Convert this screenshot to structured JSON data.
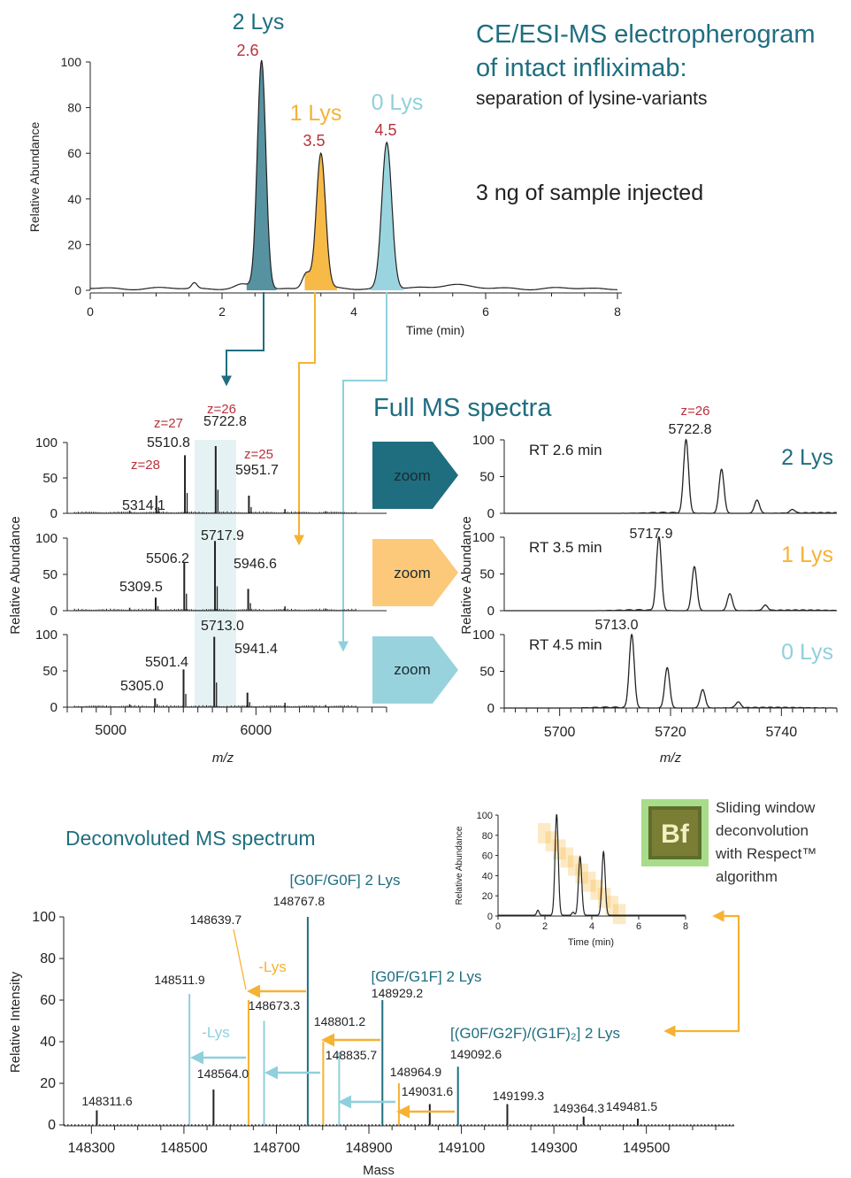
{
  "colors": {
    "teal": "#1f6e80",
    "gold": "#f6b233",
    "light": "#8fd0dc",
    "red": "#b9303a",
    "ink": "#222222",
    "highlight": "#e4f2f4"
  },
  "electropherogram": {
    "title_line1": "CE/ESI-MS electropherogram",
    "title_line2": "of intact infliximab:",
    "subtitle": "separation of lysine-variants",
    "sample_note": "3 ng of sample injected",
    "ylabel": "Relative Abundance",
    "xlabel": "Time (min)",
    "peaks": [
      {
        "label": "2 Lys",
        "time": "2.6",
        "color": "#1f6e80"
      },
      {
        "label": "1 Lys",
        "time": "3.5",
        "color": "#f6b233"
      },
      {
        "label": "0 Lys",
        "time": "4.5",
        "color": "#8fd0dc"
      }
    ]
  },
  "full_ms": {
    "title": "Full MS spectra",
    "ylabel": "Relative Abundance",
    "xlabel": "m/z",
    "zoom_label": "zoom",
    "left_panels": [
      {
        "annotations": [
          {
            "charge": "z=28",
            "mz": "5314.1"
          },
          {
            "charge": "z=27",
            "mz": "5510.8"
          },
          {
            "charge": "z=26",
            "mz": "5722.8"
          },
          {
            "charge": "z=25",
            "mz": "5951.7"
          }
        ]
      },
      {
        "annotations": [
          {
            "charge": "",
            "mz": "5309.5"
          },
          {
            "charge": "",
            "mz": "5506.2"
          },
          {
            "charge": "",
            "mz": "5717.9"
          },
          {
            "charge": "",
            "mz": "5946.6"
          }
        ]
      },
      {
        "annotations": [
          {
            "charge": "",
            "mz": "5305.0"
          },
          {
            "charge": "",
            "mz": "5501.4"
          },
          {
            "charge": "",
            "mz": "5713.0"
          },
          {
            "charge": "",
            "mz": "5941.4"
          }
        ]
      }
    ],
    "right_panels": [
      {
        "rt": "RT 2.6 min",
        "variant": "2 Lys",
        "charge": "z=26",
        "mz": "5722.8"
      },
      {
        "rt": "RT 3.5 min",
        "variant": "1 Lys",
        "charge": "",
        "mz": "5717.9"
      },
      {
        "rt": "RT 4.5 min",
        "variant": "0 Lys",
        "charge": "",
        "mz": "5713.0"
      }
    ]
  },
  "deconvoluted": {
    "title": "Deconvoluted MS spectrum",
    "ylabel": "Relative Intensity",
    "xlabel": "Mass",
    "group_labels": {
      "g0f_g0f": "[G0F/G0F] 2 Lys",
      "g0f_g1f": "[G0F/G1F] 2 Lys",
      "g0f_g2f": "[(G0F/G2F)/(G1F)₂] 2 Lys",
      "minus_lys_gold": "-Lys",
      "minus_lys_light": "-Lys"
    },
    "note_line1": "Sliding window",
    "note_line2": "deconvolution",
    "note_line3": "with Respect™",
    "note_line4": "algorithm",
    "logo_text": "Bf",
    "inset": {
      "ylabel": "Relative Abundance",
      "xlabel": "Time (min)"
    }
  },
  "chart_data": [
    {
      "type": "line",
      "title": "CE/ESI-MS electropherogram of intact infliximab: separation of lysine-variants",
      "xlabel": "Time (min)",
      "ylabel": "Relative Abundance",
      "xlim": [
        0,
        8
      ],
      "ylim": [
        0,
        100
      ],
      "xticks": [
        0,
        2,
        4,
        6,
        8
      ],
      "yticks": [
        0,
        20,
        40,
        60,
        80,
        100
      ],
      "series": [
        {
          "name": "2 Lys",
          "x": [
            2.6
          ],
          "y": [
            100
          ]
        },
        {
          "name": "1 Lys",
          "x": [
            3.5
          ],
          "y": [
            59
          ]
        },
        {
          "name": "0 Lys",
          "x": [
            4.5
          ],
          "y": [
            64
          ]
        }
      ]
    },
    {
      "type": "bar",
      "title": "Full MS spectra",
      "xlabel": "m/z",
      "ylabel": "Relative Abundance",
      "xlim": [
        4700,
        6900
      ],
      "ylim": [
        0,
        100
      ],
      "xticks": [
        5000,
        6000
      ],
      "yticks": [
        0,
        50,
        100
      ],
      "series": [
        {
          "name": "2 Lys",
          "x": [
            5314.1,
            5510.8,
            5722.8,
            5951.7
          ],
          "y": [
            25,
            82,
            95,
            25
          ]
        },
        {
          "name": "1 Lys",
          "x": [
            5309.5,
            5506.2,
            5717.9,
            5946.6
          ],
          "y": [
            18,
            67,
            96,
            30
          ]
        },
        {
          "name": "0 Lys",
          "x": [
            5305.0,
            5501.4,
            5713.0,
            5941.4
          ],
          "y": [
            12,
            52,
            97,
            20
          ]
        }
      ]
    },
    {
      "type": "line",
      "title": "",
      "xlabel": "m/z",
      "ylabel": "Relative Abundance",
      "xlim": [
        5690,
        5750
      ],
      "ylim": [
        0,
        100
      ],
      "xticks": [
        5700,
        5720,
        5740
      ],
      "yticks": [
        0,
        50,
        100
      ],
      "series": [
        {
          "name": "2 Lys",
          "x": [
            5722.8,
            5729.2,
            5735.6,
            5742.0
          ],
          "y": [
            100,
            60,
            18,
            5
          ]
        },
        {
          "name": "1 Lys",
          "x": [
            5717.9,
            5724.3,
            5730.7,
            5737.1
          ],
          "y": [
            100,
            60,
            23,
            7
          ]
        },
        {
          "name": "0 Lys",
          "x": [
            5713.0,
            5719.4,
            5725.8,
            5732.2
          ],
          "y": [
            100,
            55,
            25,
            8
          ]
        }
      ]
    },
    {
      "type": "bar",
      "title": "Deconvoluted MS spectrum",
      "xlabel": "Mass",
      "ylabel": "Relative Intensity",
      "xlim": [
        148240,
        149690
      ],
      "ylim": [
        0,
        100
      ],
      "xticks": [
        148300,
        148500,
        148700,
        148900,
        149100,
        149300,
        149500
      ],
      "yticks": [
        0,
        20,
        40,
        60,
        80,
        100
      ],
      "series": [
        {
          "name": "2 Lys",
          "x": [
            148767.8,
            148929.2,
            149092.6
          ],
          "y": [
            100,
            60,
            28
          ]
        },
        {
          "name": "1 Lys",
          "x": [
            148639.7,
            148801.2,
            148964.9
          ],
          "y": [
            60,
            40,
            20
          ]
        },
        {
          "name": "0 Lys",
          "x": [
            148511.9,
            148673.3,
            148835.7
          ],
          "y": [
            63,
            50,
            35
          ]
        },
        {
          "name": "",
          "x": [
            148311.6,
            148564.0,
            149031.6,
            149199.3,
            149364.3,
            149481.5
          ],
          "y": [
            7,
            17,
            10,
            10,
            4,
            3
          ]
        }
      ]
    },
    {
      "type": "line",
      "title": "",
      "xlabel": "Time (min)",
      "ylabel": "Relative Abundance",
      "xlim": [
        0,
        8
      ],
      "ylim": [
        0,
        100
      ],
      "xticks": [
        0,
        2,
        4,
        6,
        8
      ],
      "yticks": [
        0,
        20,
        40,
        60,
        80,
        100
      ],
      "series": [
        {
          "name": "",
          "x": [
            2.5,
            3.5,
            4.5
          ],
          "y": [
            100,
            58,
            63
          ]
        }
      ]
    }
  ]
}
